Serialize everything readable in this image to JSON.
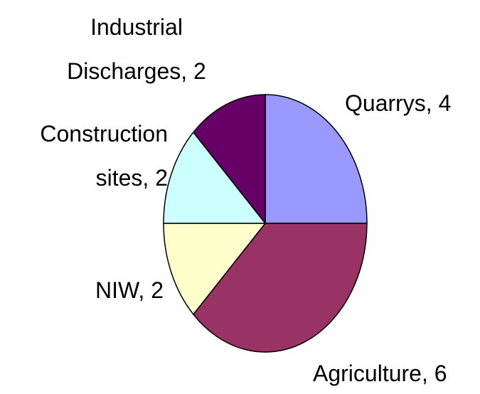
{
  "chart_data": {
    "type": "pie",
    "values": [
      4,
      6,
      2,
      2,
      2
    ],
    "value_labels": [
      "Quarrys, 4",
      "Agriculture, 6",
      "NIW, 2",
      "Construction sites, 2",
      "Industrial Discharges, 2"
    ],
    "colors": [
      "#9999ff",
      "#993366",
      "#ffffcc",
      "#ccffff",
      "#660066"
    ]
  }
}
